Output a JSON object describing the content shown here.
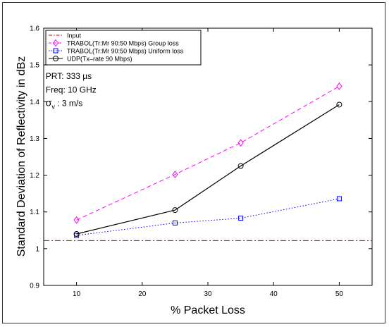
{
  "chart_data": {
    "type": "line",
    "xlabel": "% Packet Loss",
    "ylabel": "Standard Deviation of Reflectivity in dBz",
    "xlim": [
      5,
      55
    ],
    "ylim": [
      0.9,
      1.6
    ],
    "xticks": [
      "10",
      "20",
      "30",
      "40",
      "50"
    ],
    "yticks": [
      "0.9",
      "1",
      "1.1",
      "1.2",
      "1.3",
      "1.4",
      "1.5",
      "1.6"
    ],
    "grid": false,
    "legend_position": "top-left",
    "series": [
      {
        "name": "Input",
        "style": "dash-dot",
        "color": "#cc0000",
        "marker": "none",
        "x": [
          5,
          55
        ],
        "values": [
          1.022,
          1.022
        ]
      },
      {
        "name": "TRABOL(Tr:Mr 90:50 Mbps) Group loss",
        "style": "dashed",
        "color": "#ff00ff",
        "marker": "diamond",
        "x": [
          10,
          25,
          35,
          50
        ],
        "values": [
          1.078,
          1.202,
          1.288,
          1.442
        ]
      },
      {
        "name": "TRABOL(Tr:Mr 90:50 Mbps) Uniform loss",
        "style": "dotted",
        "color": "#0000ff",
        "marker": "square",
        "x": [
          10,
          25,
          35,
          50
        ],
        "values": [
          1.036,
          1.07,
          1.083,
          1.136
        ]
      },
      {
        "name": "UDP(Tx–rate 90 Mbps)",
        "style": "solid",
        "color": "#000000",
        "marker": "circle",
        "x": [
          10,
          25,
          35,
          50
        ],
        "values": [
          1.04,
          1.105,
          1.225,
          1.392
        ]
      }
    ],
    "annotations": [
      {
        "text": "PRT: 333 µs",
        "x": 5.3,
        "y": 1.462
      },
      {
        "text": "Freq: 10 GHz",
        "x": 5.3,
        "y": 1.425
      },
      {
        "text": "σ",
        "sub": "v",
        "rest": "  : 3 m/s",
        "x": 5.3,
        "y": 1.388
      }
    ]
  }
}
